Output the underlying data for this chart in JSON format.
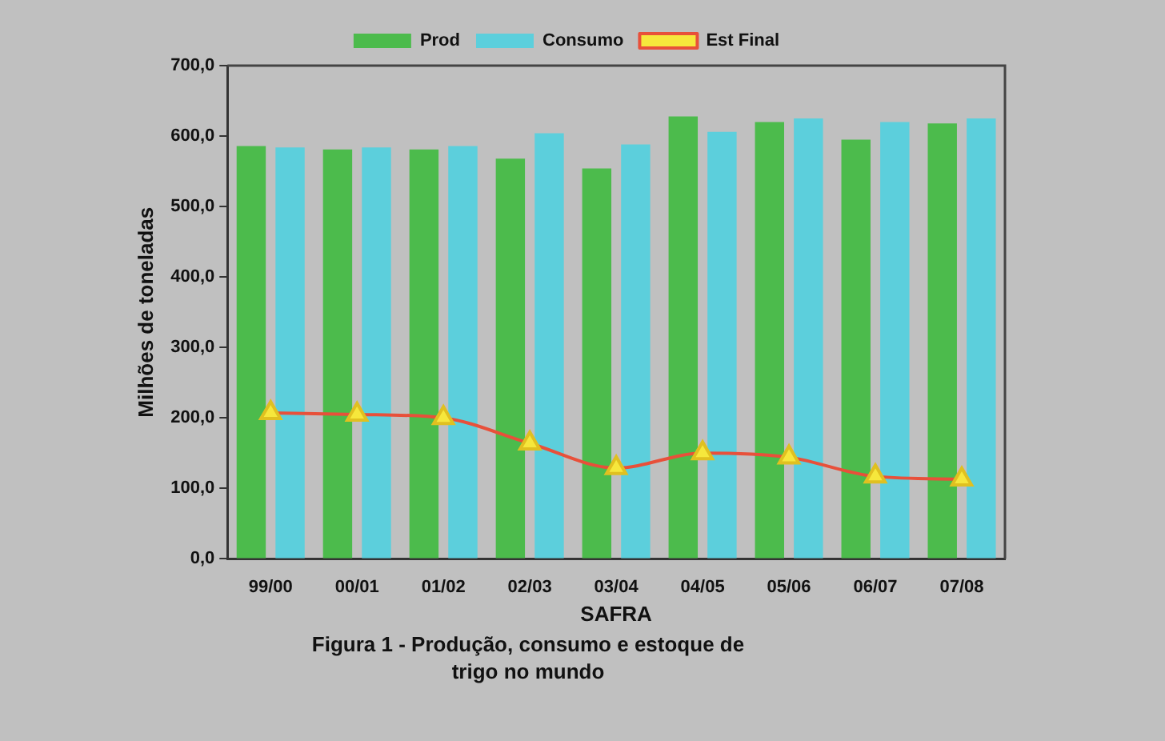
{
  "chart_data": {
    "type": "bar",
    "xlabel": "SAFRA",
    "ylabel": "Milhões de toneladas",
    "annotations": [
      "Figura 1 - Produção, consumo e estoque de trigo no mundo"
    ],
    "categories": [
      "99/00",
      "00/01",
      "01/02",
      "02/03",
      "03/04",
      "04/05",
      "05/06",
      "06/07",
      "07/08"
    ],
    "series": [
      {
        "name": "Prod",
        "color": "#4cbb4c",
        "values": [
          586,
          581,
          581,
          568,
          554,
          628,
          620,
          595,
          618
        ]
      },
      {
        "name": "Consumo",
        "color": "#5ccfdc",
        "values": [
          584,
          584,
          586,
          604,
          588,
          606,
          625,
          620,
          625
        ]
      },
      {
        "name": "Est Final",
        "type": "line",
        "color": "#e8503a",
        "values": [
          207,
          205,
          200,
          164,
          129,
          150,
          144,
          117,
          113
        ]
      }
    ],
    "ylim": [
      0,
      700
    ],
    "yticks": [
      {
        "value": 0,
        "label": "0,0"
      },
      {
        "value": 100,
        "label": "100,0"
      },
      {
        "value": 200,
        "label": "200,0"
      },
      {
        "value": 300,
        "label": "300,0"
      },
      {
        "value": 400,
        "label": "400,0"
      },
      {
        "value": 500,
        "label": "500,0"
      },
      {
        "value": 600,
        "label": "600,0"
      },
      {
        "value": 700,
        "label": "700,0"
      }
    ],
    "grid": false,
    "legend": "top",
    "marker": "triangle"
  }
}
